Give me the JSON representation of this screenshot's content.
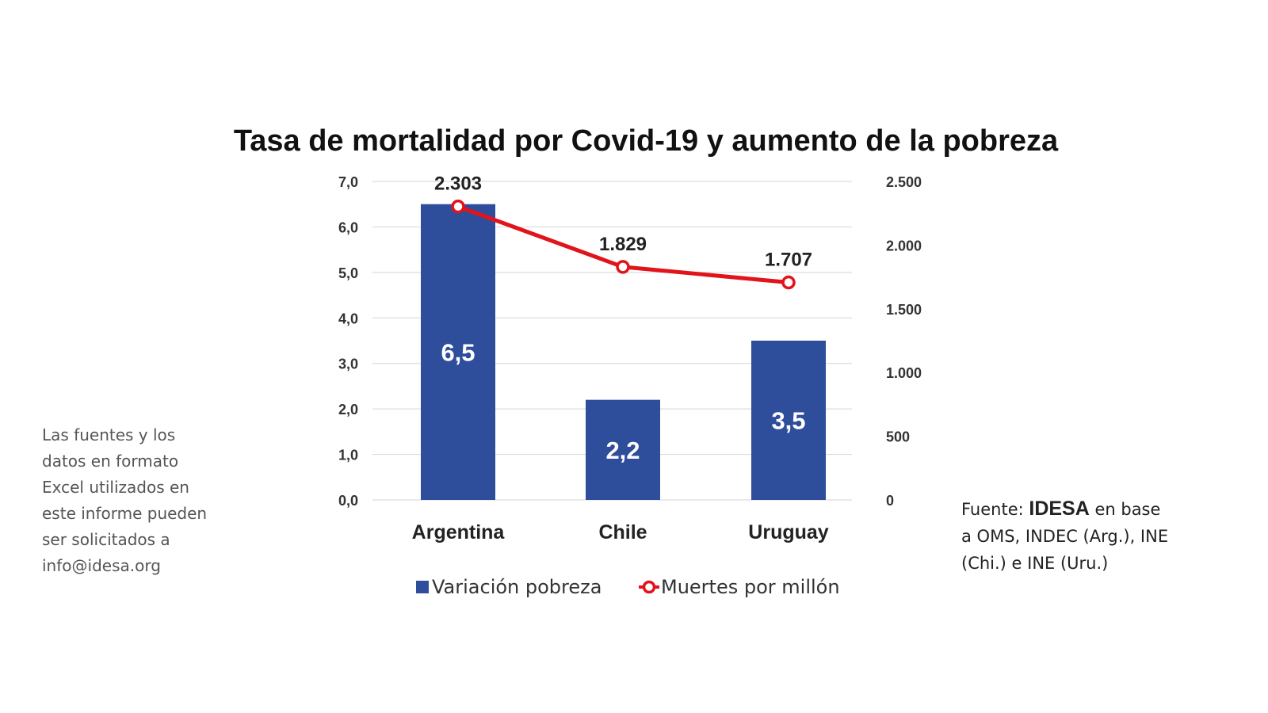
{
  "chart_data": {
    "type": "bar",
    "title": "Tasa de mortalidad por Covid-19 y aumento de la pobreza",
    "categories": [
      "Argentina",
      "Chile",
      "Uruguay"
    ],
    "series": [
      {
        "name": "Variación pobreza",
        "kind": "bar",
        "axis": "left",
        "color": "#2e4e9c",
        "values": [
          6.5,
          2.2,
          3.5
        ],
        "labels": [
          "6,5",
          "2,2",
          "3,5"
        ]
      },
      {
        "name": "Muertes por millón",
        "kind": "line",
        "axis": "right",
        "color": "#e2141b",
        "values": [
          2303,
          1829,
          1707
        ],
        "labels": [
          "2.303",
          "1.829",
          "1.707"
        ]
      }
    ],
    "y_left": {
      "ylim": [
        0,
        7
      ],
      "ticks": [
        0,
        1,
        2,
        3,
        4,
        5,
        6,
        7
      ],
      "tick_labels": [
        "0,0",
        "1,0",
        "2,0",
        "3,0",
        "4,0",
        "5,0",
        "6,0",
        "7,0"
      ]
    },
    "y_right": {
      "ylim": [
        0,
        2500
      ],
      "ticks": [
        0,
        500,
        1000,
        1500,
        2000,
        2500
      ],
      "tick_labels": [
        "0",
        "500",
        "1.000",
        "1.500",
        "2.000",
        "2.500"
      ]
    },
    "grid": true,
    "legend_position": "bottom"
  },
  "side_note": {
    "lines": [
      "Las fuentes y los",
      "datos en formato",
      "Excel utilizados en",
      "este informe pueden",
      "ser solicitados a",
      "info@idesa.org"
    ]
  },
  "source": {
    "prefix": "Fuente: ",
    "brand": "IDESA",
    "line1_suffix": " en base",
    "line2": "a OMS, INDEC (Arg.), INE",
    "line3": "(Chi.) e INE (Uru.)"
  }
}
